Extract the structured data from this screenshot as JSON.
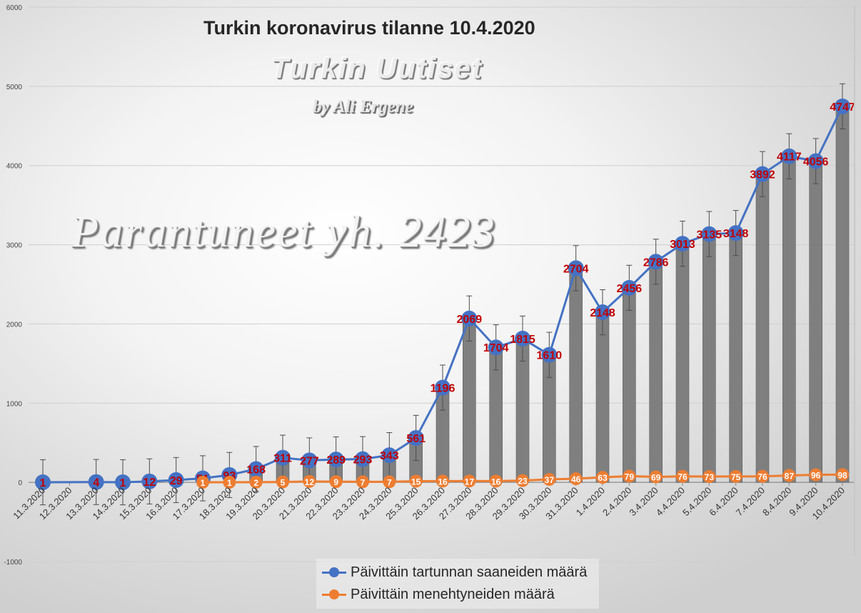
{
  "chart_data": {
    "type": "bar+line",
    "title": "Turkin koronavirus tilanne 10.4.2020",
    "categories": [
      "11.3.2020",
      "12.3.2020",
      "13.3.2020",
      "14.3.2020",
      "15.3.2020",
      "16.3.2020",
      "17.3.2020",
      "18.3.2020",
      "19.3.2020",
      "20.3.2020",
      "21.3.2020",
      "22.3.2020",
      "23.3.2020",
      "24.3.2020",
      "25.3.2020",
      "26.3.2020",
      "27.3.2020",
      "28.3.2020",
      "29.3.2020",
      "30.3.2020",
      "31.3.2020",
      "1.4.2020",
      "2.4.2020",
      "3.4.2020",
      "4.4.2020",
      "5.4.2020",
      "6.4.2020",
      "7.4.2020",
      "8.4.2020",
      "9.4.2020",
      "10.4.2020"
    ],
    "yticks": [
      "6000",
      "5000",
      "4000",
      "3000",
      "2000",
      "1000",
      "0",
      "-1000"
    ],
    "ylim": [
      -1000,
      6000
    ],
    "grid": true,
    "legend_position": "bottom",
    "bars": {
      "values": [
        null,
        null,
        null,
        null,
        null,
        null,
        null,
        null,
        168,
        311,
        277,
        289,
        293,
        343,
        561,
        1196,
        2069,
        1704,
        1815,
        1610,
        2704,
        2148,
        2456,
        2786,
        3013,
        3135,
        3148,
        3892,
        4117,
        4056,
        4747
      ],
      "color": "#7f7f7f",
      "error_bar": 285
    },
    "series": [
      {
        "name": "Päivittäin tartunnan saaneiden määrä",
        "color": "#4472c4",
        "values": [
          1,
          null,
          4,
          1,
          12,
          29,
          51,
          93,
          168,
          311,
          277,
          289,
          293,
          343,
          561,
          1196,
          2069,
          1704,
          1815,
          1610,
          2704,
          2148,
          2456,
          2786,
          3013,
          3135,
          3148,
          3892,
          4117,
          4056,
          4747
        ],
        "labels": [
          "1",
          "",
          "4",
          "1",
          "12",
          "29",
          "51",
          "93",
          "168",
          "311",
          "277",
          "289",
          "293",
          "343",
          "561",
          "1196",
          "2069",
          "1704",
          "1815",
          "1610",
          "2704",
          "2148",
          "2456",
          "2786",
          "3013",
          "3135",
          "3148",
          "3892",
          "4117",
          "4056",
          "4747"
        ],
        "label_color": "#c00000"
      },
      {
        "name": "Päivittäin menehtyneiden määrä",
        "color": "#ed7d31",
        "values": [
          null,
          null,
          null,
          null,
          null,
          null,
          1,
          1,
          2,
          5,
          12,
          9,
          7,
          7,
          15,
          16,
          17,
          16,
          23,
          37,
          46,
          63,
          79,
          69,
          76,
          73,
          75,
          76,
          87,
          96,
          98
        ],
        "labels": [
          "",
          "",
          "",
          "",
          "",
          "",
          "1",
          "1",
          "2",
          "5",
          "12",
          "9",
          "7",
          "7",
          "15",
          "16",
          "17",
          "16",
          "23",
          "37",
          "46",
          "63",
          "79",
          "69",
          "76",
          "73",
          "75",
          "76",
          "87",
          "96",
          "98"
        ],
        "label_color": "#ffffff"
      }
    ]
  },
  "watermark": {
    "brand": "Turkin Uutiset",
    "byline": "by Ali Ergene",
    "recovered": "Parantuneet yh. 2423"
  },
  "colors": {
    "bar": "#7f7f7f",
    "cases": "#4472c4",
    "deaths": "#ed7d31",
    "case_label": "#c00000"
  }
}
